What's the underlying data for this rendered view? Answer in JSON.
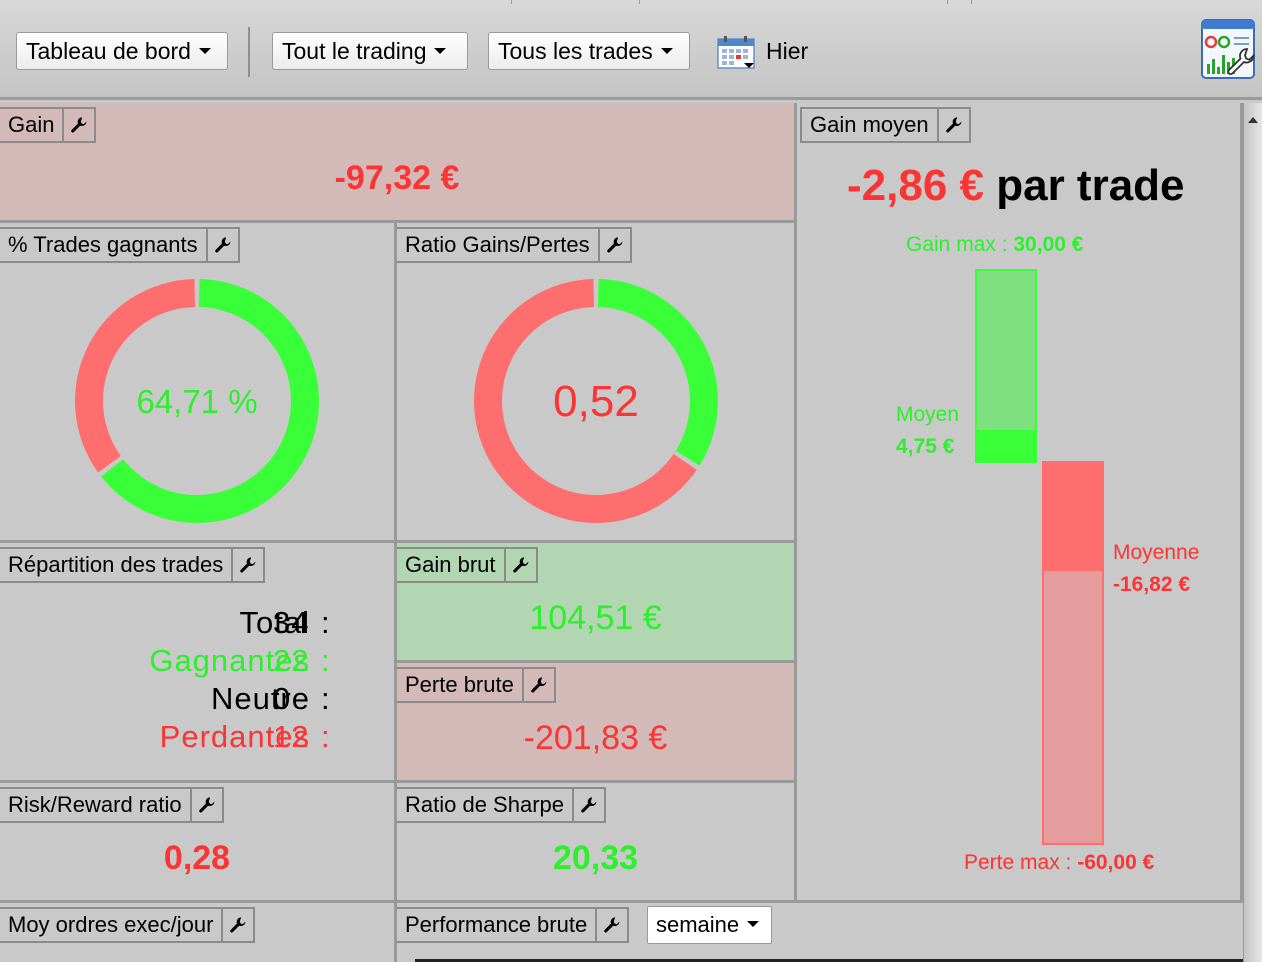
{
  "toolbar": {
    "dashboard_menu": "Tableau de bord",
    "trading_filter": "Tout le trading",
    "trades_filter": "Tous les trades",
    "date_label": "Hier"
  },
  "colors": {
    "loss": "#fb3434",
    "gain": "#2cf02c",
    "loss_bg": "#d4b9b9",
    "gain_bg": "#b1d6b1"
  },
  "gain": {
    "title": "Gain",
    "value": "-97,32 €"
  },
  "win_rate": {
    "title": "% Trades gagnants",
    "value": "64,71 %",
    "fraction": 0.6471
  },
  "ratio_gp": {
    "title": "Ratio Gains/Pertes",
    "value": "0,52",
    "fraction": 0.3421
  },
  "distribution": {
    "title": "Répartition des trades",
    "total_label": "Total",
    "total_value": "34",
    "winners_label": "Gagnantes",
    "winners_value": "22",
    "neutral_label": "Neutre",
    "neutral_value": "0",
    "losers_label": "Perdantes",
    "losers_value": "12"
  },
  "gross_gain": {
    "title": "Gain brut",
    "value": "104,51 €"
  },
  "gross_loss": {
    "title": "Perte brute",
    "value": "-201,83 €"
  },
  "risk_reward": {
    "title": "Risk/Reward ratio",
    "value": "0,28"
  },
  "sharpe": {
    "title": "Ratio de Sharpe",
    "value": "20,33"
  },
  "orders_per_day": {
    "title": "Moy ordres exec/jour"
  },
  "performance": {
    "title": "Performance brute",
    "period": "semaine"
  },
  "avg_gain": {
    "title": "Gain moyen",
    "value": "-2,86 €",
    "suffix": "par trade",
    "max_gain_label": "Gain max : ",
    "max_gain_value": "30,00 €",
    "avg_win_label": "Moyen",
    "avg_win_value": "4,75 €",
    "avg_loss_label": "Moyenne",
    "avg_loss_value": "-16,82 €",
    "max_loss_label": "Perte max : ",
    "max_loss_value": "-60,00 €"
  }
}
